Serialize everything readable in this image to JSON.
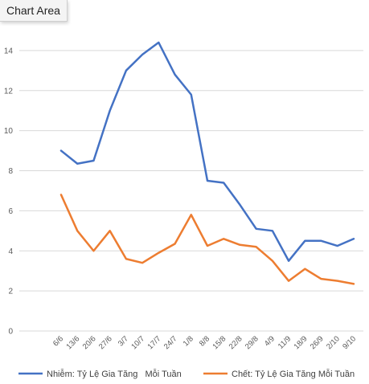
{
  "tooltip": {
    "label": "Chart Area"
  },
  "chart_data": {
    "type": "line",
    "categories": [
      "6/6",
      "13/6",
      "20/6",
      "27/6",
      "3/7",
      "10/7",
      "17/7",
      "24/7",
      "1/8",
      "8/8",
      "15/8",
      "22/8",
      "29/8",
      "4/9",
      "11/9",
      "18/9",
      "26/9",
      "2/10",
      "9/10"
    ],
    "series": [
      {
        "name": "Nhiễm: Tỷ Lệ Gia Tăng   Mỗi Tuần",
        "color": "#4472c4",
        "values": [
          9.0,
          8.35,
          8.5,
          11.0,
          13.0,
          13.8,
          14.4,
          12.8,
          11.8,
          7.5,
          7.4,
          6.3,
          5.1,
          5.0,
          3.5,
          4.5,
          4.5,
          4.25,
          4.6
        ]
      },
      {
        "name": "Chết: Tỷ Lệ Gia Tăng Mỗi Tuần",
        "color": "#ed7d31",
        "values": [
          6.8,
          5.0,
          4.0,
          5.0,
          3.6,
          3.4,
          3.9,
          4.35,
          5.8,
          4.25,
          4.6,
          4.3,
          4.2,
          3.5,
          2.5,
          3.1,
          2.6,
          2.5,
          2.35
        ]
      }
    ],
    "yticks": [
      "0",
      "2",
      "4",
      "6",
      "8",
      "10",
      "12",
      "14"
    ],
    "ylim": [
      0,
      16
    ],
    "grid": true,
    "legend": "bottom"
  }
}
